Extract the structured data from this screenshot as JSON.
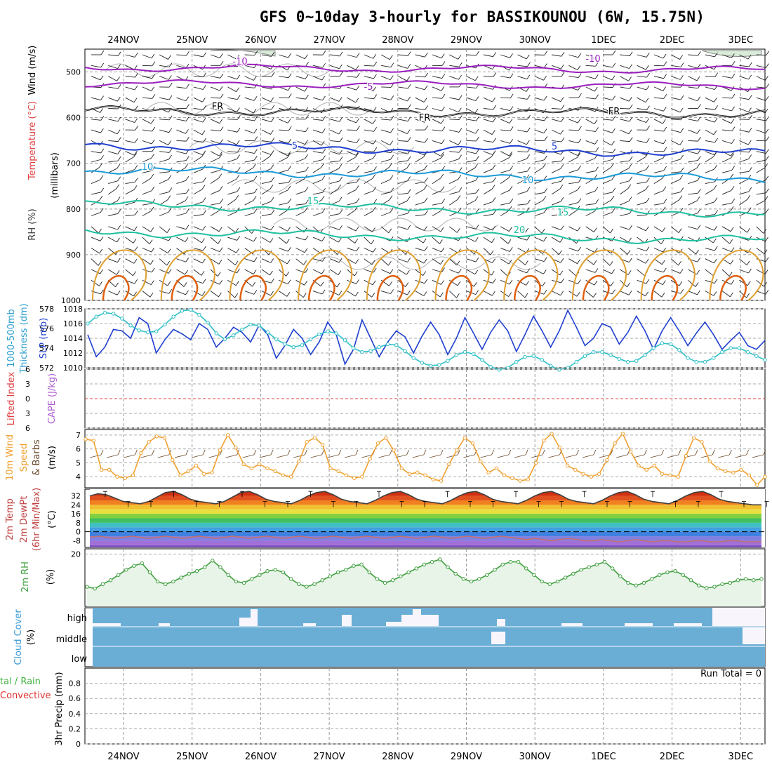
{
  "title": "GFS 0~10day 3-hourly for BASSIKOUNOU (6W, 15.75N)",
  "dates": [
    "24NOV",
    "25NOV",
    "26NOV",
    "27NOV",
    "28NOV",
    "29NOV",
    "30NOV",
    "1DEC",
    "2DEC",
    "3DEC"
  ],
  "colors": {
    "purple": "#9b1fbf",
    "black": "#000000",
    "blue": "#1f3fd0",
    "lightblue": "#1a9ad8",
    "teal": "#1fc0a0",
    "orange": "#e0a030",
    "darkorange": "#e06010",
    "slp": "#1f3fd0",
    "thick": "#30c0c8",
    "wind10": "#f0a030",
    "rh2m": "#40a040",
    "cloud": "#6aaed6"
  },
  "labels": {
    "panel1": [
      "RH (%)",
      "Temperature (°C)",
      "Wind (m/s)",
      "(millibars)"
    ],
    "panel2": [
      "1000-500mb",
      "Thickness (dm)",
      "SLP (mb)"
    ],
    "panel3": [
      "Lifted Index",
      "CAPE (J/kg)"
    ],
    "panel4": [
      "10m Wind",
      "Speed",
      "& Barbs",
      "(m/s)"
    ],
    "panel5": [
      "2m Temp",
      "2m DewPt",
      "(6hr Min/Max)",
      "(°C)"
    ],
    "panel6": [
      "2m RH",
      "(%)"
    ],
    "panel7": [
      "Cloud Cover",
      "(%)"
    ],
    "panel8": [
      "tal / Rain",
      "Convective",
      "3hr Precip (mm)"
    ],
    "run_total": "Run Total = 0",
    "cloud_levels": [
      "high",
      "middle",
      "low"
    ]
  },
  "chart_data": [
    {
      "type": "line",
      "panel": "pressure-time cross section",
      "ylabel": "(millibars)",
      "yticks": [
        500,
        600,
        700,
        800,
        900,
        1000
      ],
      "ylim": [
        1000,
        450
      ],
      "contour_labels": [
        {
          "text": "-10",
          "color": "purple"
        },
        {
          "text": "-5",
          "color": "purple"
        },
        {
          "text": "FR",
          "color": "black"
        },
        {
          "text": "5",
          "color": "blue"
        },
        {
          "text": "10",
          "color": "lightblue"
        },
        {
          "text": "15",
          "color": "teal"
        },
        {
          "text": "20",
          "color": "teal"
        }
      ],
      "isotherms": [
        {
          "name": "-10",
          "level": 490
        },
        {
          "name": "-5",
          "level": 525
        },
        {
          "name": "FR",
          "level": 585
        },
        {
          "name": "5",
          "level": 660
        },
        {
          "name": "10",
          "level": 715
        },
        {
          "name": "15",
          "level": 790
        },
        {
          "name": "20",
          "level": 850
        }
      ]
    },
    {
      "type": "line",
      "panel": "SLP and thickness",
      "yticks_left": [
        572,
        574,
        576,
        578
      ],
      "yticks_right": [
        1010,
        1012,
        1014,
        1016,
        1018
      ],
      "series": [
        {
          "name": "SLP (mb)",
          "axis": "right",
          "values": [
            1014.5,
            1011.5,
            1012.8,
            1015.2,
            1015.0,
            1014.0,
            1016.8,
            1016.0,
            1012.0,
            1013.8,
            1015.2,
            1014.6,
            1013.8,
            1016.0,
            1015.2,
            1012.8,
            1014.0,
            1015.5,
            1014.8,
            1013.5,
            1015.8,
            1014.5,
            1011.3,
            1013.0,
            1015.2,
            1014.0,
            1011.8,
            1013.5,
            1016.2,
            1014.5,
            1010.5,
            1012.5,
            1016.5,
            1014.0,
            1011.5,
            1013.5,
            1015.0,
            1014.2,
            1012.0,
            1014.3,
            1016.2,
            1014.5,
            1011.8,
            1014.0,
            1016.8,
            1014.7,
            1012.5,
            1014.8,
            1016.5,
            1015.0,
            1012.2,
            1014.5,
            1017.0,
            1015.0,
            1012.8,
            1015.0,
            1017.8,
            1015.5,
            1013.0,
            1014.0,
            1016.0,
            1015.5,
            1013.2,
            1014.8,
            1017.0,
            1015.0,
            1012.5,
            1015.0,
            1016.8,
            1015.0,
            1013.0,
            1014.7,
            1016.2,
            1014.5,
            1012.5,
            1013.7,
            1014.8,
            1013.0,
            1012.5,
            1013.7
          ]
        },
        {
          "name": "Thickness (dm)",
          "axis": "left",
          "values": [
            576.5,
            577.2,
            577.6,
            577.5,
            577.0,
            576.3,
            575.8,
            575.6,
            575.7,
            576.4,
            577.2,
            577.8,
            577.9,
            577.4,
            576.6,
            575.5,
            574.9,
            575.3,
            575.9,
            576.4,
            576.3,
            575.6,
            574.9,
            574.4,
            574.1,
            574.3,
            574.9,
            575.4,
            575.7,
            575.5,
            574.8,
            574.0,
            573.6,
            573.7,
            574.1,
            574.4,
            574.3,
            573.7,
            573.0,
            572.5,
            572.2,
            572.3,
            572.7,
            573.3,
            573.6,
            573.4,
            572.8,
            572.1,
            571.8,
            572.0,
            572.6,
            573.1,
            573.2,
            572.8,
            572.2,
            571.8,
            572.0,
            572.6,
            573.2,
            573.6,
            573.6,
            573.3,
            572.9,
            572.6,
            572.7,
            573.3,
            574.0,
            574.5,
            574.4,
            573.8,
            573.0,
            572.6,
            572.6,
            573.0,
            573.6,
            574.0,
            574.0,
            573.6,
            573.2,
            572.8
          ]
        }
      ]
    },
    {
      "type": "line",
      "panel": "Lifted Index / CAPE",
      "yticks": [
        -6,
        -3,
        0,
        3,
        6
      ],
      "ylim": [
        6,
        -6
      ],
      "series": [
        {
          "name": "Lifted Index",
          "values": []
        }
      ]
    },
    {
      "type": "line",
      "panel": "10m wind speed",
      "ylabel": "(m/s)",
      "yticks": [
        4,
        5,
        6,
        7
      ],
      "ylim": [
        3.2,
        7.4
      ],
      "series": [
        {
          "name": "10m Wind Speed",
          "values": [
            6.7,
            6.6,
            4.5,
            4.5,
            4.0,
            3.9,
            4.1,
            5.7,
            6.5,
            6.9,
            6.8,
            5.2,
            4.1,
            4.4,
            4.8,
            4.2,
            4.3,
            5.9,
            7.0,
            6.1,
            4.9,
            4.6,
            4.9,
            4.6,
            4.4,
            4.1,
            4.0,
            5.1,
            6.5,
            6.8,
            6.3,
            4.6,
            4.4,
            4.1,
            3.9,
            4.0,
            5.3,
            6.4,
            6.8,
            5.9,
            4.6,
            4.2,
            4.3,
            4.1,
            3.8,
            3.7,
            4.9,
            5.9,
            6.8,
            6.4,
            5.1,
            4.3,
            4.6,
            4.1,
            3.9,
            3.7,
            3.8,
            5.0,
            6.6,
            7.1,
            6.1,
            4.8,
            4.5,
            4.2,
            4.0,
            4.2,
            5.2,
            6.4,
            7.1,
            5.8,
            4.8,
            4.5,
            4.8,
            4.2,
            4.1,
            4.0,
            5.5,
            6.8,
            6.5,
            5.1,
            4.6,
            4.4,
            4.3,
            4.5,
            4.1,
            3.4,
            4.0
          ]
        }
      ]
    },
    {
      "type": "area",
      "panel": "2m temperature / dewpoint",
      "ylabel": "(°C)",
      "yticks": [
        -8,
        0,
        8,
        16,
        24,
        32
      ],
      "ylim": [
        -14,
        38
      ],
      "series": [
        {
          "name": "2m Temp",
          "values": [
            32,
            34,
            33,
            30,
            27,
            26,
            25,
            27,
            31,
            35,
            36,
            33,
            29,
            27,
            26,
            25,
            27,
            31,
            35,
            36,
            33,
            29,
            27,
            26,
            25,
            28,
            32,
            35,
            36,
            33,
            29,
            27,
            26,
            25,
            28,
            32,
            35,
            36,
            33,
            29,
            27,
            26,
            25,
            28,
            32,
            35,
            36,
            33,
            29,
            27,
            26,
            25,
            28,
            32,
            35,
            36,
            33,
            29,
            27,
            26,
            25,
            28,
            32,
            35,
            36,
            33,
            29,
            27,
            26,
            25,
            28,
            32,
            35,
            36,
            33,
            29,
            27,
            26,
            25,
            24,
            24
          ]
        },
        {
          "name": "2m DewPt",
          "values": [
            -5,
            -4,
            -5,
            -6,
            -5,
            -4,
            -5,
            -6,
            -5,
            -4,
            -5,
            -6,
            -5,
            -4,
            -5,
            -6,
            -5,
            -4,
            -5,
            -6,
            -5,
            -4,
            -5,
            -6,
            -5,
            -4,
            -5,
            -6,
            -5,
            -4,
            -5,
            -6,
            -5,
            -4,
            -5,
            -6,
            -5,
            -4,
            -5,
            -6,
            -5,
            -4,
            -5,
            -6,
            -5,
            -4,
            -5,
            -6,
            -5,
            -4,
            -5,
            -6,
            -7,
            -6,
            -7,
            -8,
            -7,
            -6,
            -7,
            -8,
            -8,
            -7,
            -8,
            -9,
            -8,
            -7,
            -8,
            -9,
            -8,
            -8,
            -9,
            -9,
            -8,
            -8,
            -9,
            -9,
            -8,
            -8,
            -9,
            -9,
            -9
          ]
        }
      ]
    },
    {
      "type": "area",
      "panel": "2m RH",
      "ylabel": "(%)",
      "yticks": [
        20
      ],
      "ylim": [
        0,
        22
      ],
      "series": [
        {
          "name": "2m RH",
          "values": [
            7.5,
            6.8,
            8.5,
            10,
            12,
            14,
            15.5,
            16.5,
            13,
            9.5,
            8.5,
            9.5,
            11,
            12.5,
            13.5,
            15,
            17.5,
            15,
            12,
            9.5,
            9,
            10.5,
            12,
            13.5,
            14,
            13,
            10.5,
            8.5,
            7.5,
            8.5,
            10,
            11.5,
            13,
            14,
            15.5,
            16,
            13,
            10.5,
            9,
            10,
            11.5,
            13,
            14.5,
            16,
            17,
            18,
            15,
            12.5,
            10.5,
            9.5,
            10.5,
            12,
            14,
            16,
            17,
            17,
            14.5,
            12,
            9.5,
            8.5,
            9.5,
            11,
            12.5,
            14,
            15,
            16,
            17,
            14.5,
            11.5,
            9,
            8,
            9,
            10.5,
            12,
            13,
            13.5,
            12,
            10,
            8,
            7,
            7.5,
            8.5,
            9,
            10,
            10.5,
            10,
            10.5
          ]
        }
      ]
    },
    {
      "type": "bar",
      "panel": "cloud cover",
      "ylabel": "(%)",
      "categories": [
        "high",
        "middle",
        "low"
      ]
    },
    {
      "type": "bar",
      "panel": "3hr precip",
      "ylabel": "3hr Precip (mm)",
      "yticks": [
        0,
        0.2,
        0.4,
        0.6,
        0.8
      ],
      "ylim": [
        0,
        1
      ],
      "values": []
    }
  ]
}
